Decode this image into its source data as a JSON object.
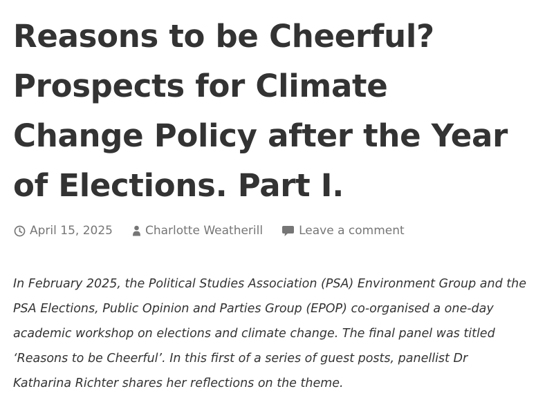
{
  "post": {
    "title": "Reasons to be Cheerful? Prospects for Climate Change Policy after the Year of Elections. Part I.",
    "meta": {
      "date": "April 15, 2025",
      "author": "Charlotte Weatherill",
      "comments_label": "Leave a comment",
      "icons": {
        "date": "clock-icon",
        "author": "person-icon",
        "comments": "speech-bubble-icon"
      }
    },
    "summary": "In February 2025, the Political Studies Association (PSA) Environment Group and the PSA Elections, Public Opinion and Parties Group (EPOP) co-organised a one-day academic workshop on elections and climate change. The final panel was titled ‘Reasons to be Cheerful’. In this first of a series of guest posts, panellist Dr Katharina Richter shares her reflections on the theme."
  },
  "colors": {
    "text": "#333333",
    "meta": "#767676",
    "background": "#ffffff"
  }
}
